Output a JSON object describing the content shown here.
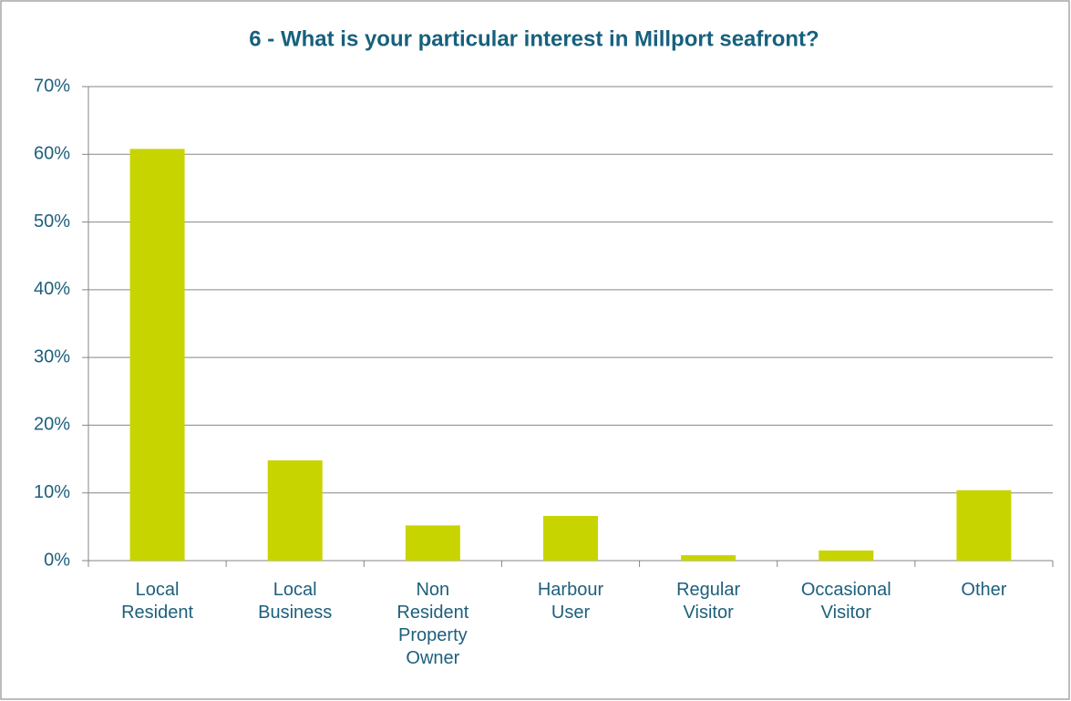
{
  "chart_data": {
    "type": "bar",
    "title": "6 - What is your particular interest in Millport seafront?",
    "categories": [
      "Local Resident",
      "Local Business",
      "Non Resident Property Owner",
      "Harbour User",
      "Regular Visitor",
      "Occasional Visitor",
      "Other"
    ],
    "values": [
      60.8,
      14.8,
      5.2,
      6.6,
      0.8,
      1.5,
      10.4
    ],
    "color": "#c8d400",
    "ylim": [
      0,
      70
    ],
    "yticks": [
      {
        "value": 0,
        "label": "0%"
      },
      {
        "value": 10,
        "label": "10%"
      },
      {
        "value": 20,
        "label": "20%"
      },
      {
        "value": 30,
        "label": "30%"
      },
      {
        "value": 40,
        "label": "40%"
      },
      {
        "value": 50,
        "label": "50%"
      },
      {
        "value": 60,
        "label": "60%"
      },
      {
        "value": 70,
        "label": "70%"
      }
    ],
    "grid": true
  }
}
